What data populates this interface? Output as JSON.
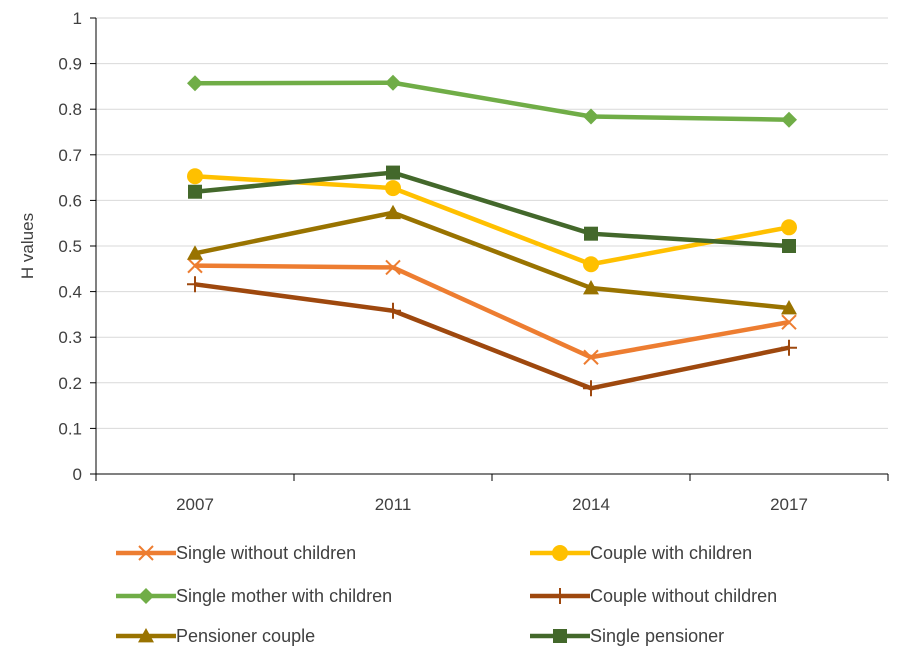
{
  "chart_data": {
    "type": "line",
    "title": "",
    "xlabel": "",
    "ylabel": "H values",
    "categories": [
      "2007",
      "2011",
      "2014",
      "2017"
    ],
    "ylim": [
      0,
      1
    ],
    "yticks": [
      "0",
      "0.1",
      "0.2",
      "0.3",
      "0.4",
      "0.5",
      "0.6",
      "0.7",
      "0.8",
      "0.9",
      "1"
    ],
    "grid": true,
    "legend_position": "bottom",
    "series": [
      {
        "name": "Single without children",
        "values": [
          0.457,
          0.453,
          0.256,
          0.333
        ],
        "color": "#ED7D31",
        "marker": "x"
      },
      {
        "name": "Couple with children",
        "values": [
          0.653,
          0.627,
          0.46,
          0.541
        ],
        "color": "#FFC000",
        "marker": "circle"
      },
      {
        "name": "Single mother with children",
        "values": [
          0.857,
          0.858,
          0.784,
          0.777
        ],
        "color": "#70AD47",
        "marker": "diamond"
      },
      {
        "name": "Couple without children",
        "values": [
          0.416,
          0.358,
          0.188,
          0.277
        ],
        "color": "#9E480E",
        "marker": "plus"
      },
      {
        "name": "Pensioner couple",
        "values": [
          0.484,
          0.573,
          0.408,
          0.364
        ],
        "color": "#997300",
        "marker": "triangle"
      },
      {
        "name": "Single pensioner",
        "values": [
          0.619,
          0.661,
          0.527,
          0.5
        ],
        "color": "#43682B",
        "marker": "square"
      }
    ]
  }
}
